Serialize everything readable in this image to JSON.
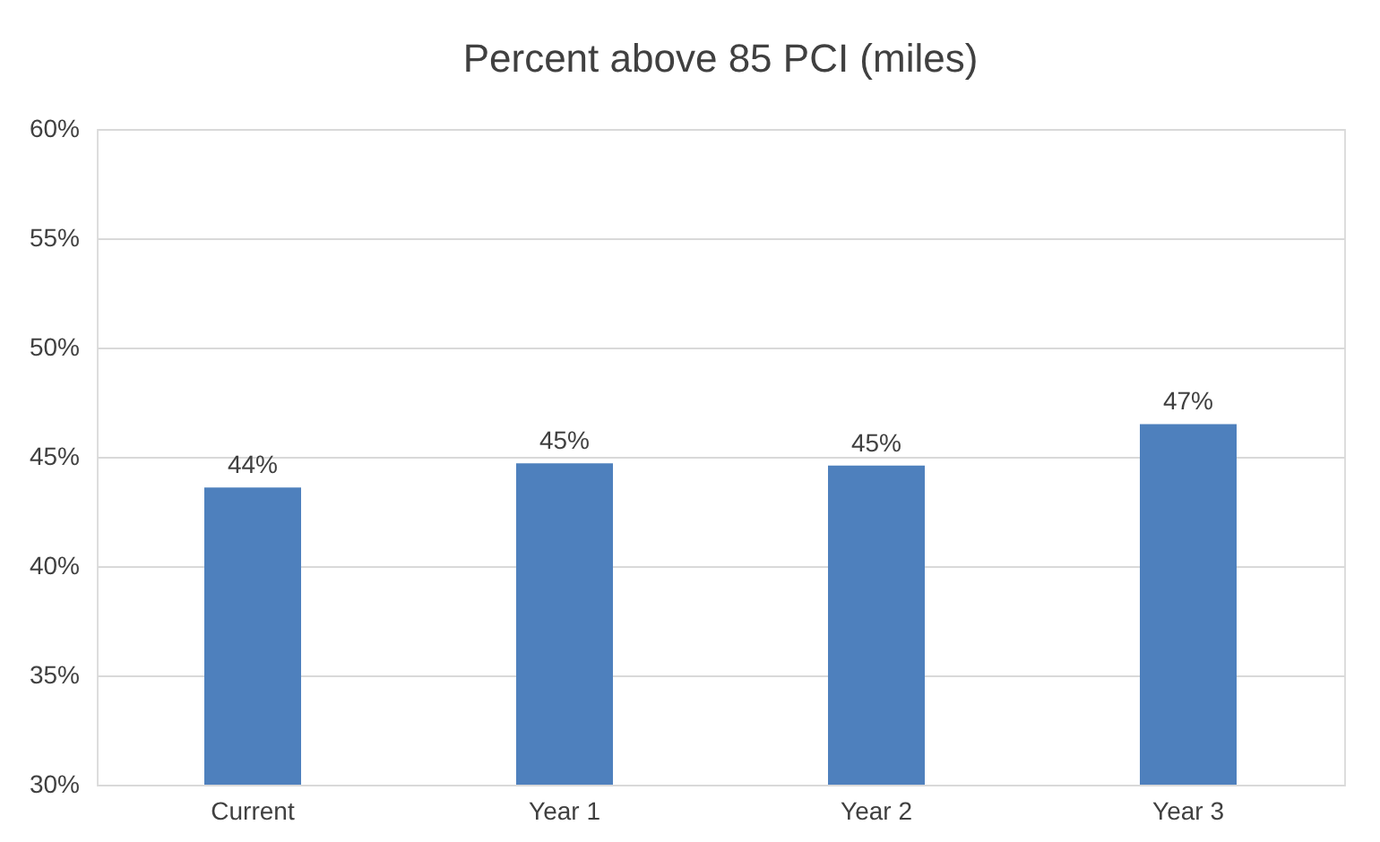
{
  "chart_data": {
    "type": "bar",
    "title": "Percent above 85 PCI (miles)",
    "categories": [
      "Current",
      "Year 1",
      "Year 2",
      "Year 3"
    ],
    "values": [
      43.6,
      44.7,
      44.6,
      46.5
    ],
    "value_labels": [
      "44%",
      "45%",
      "45%",
      "47%"
    ],
    "color": "#4e80bd",
    "ylim": [
      30,
      60
    ],
    "yticks": [
      {
        "value": 30,
        "label": "30%"
      },
      {
        "value": 35,
        "label": "35%"
      },
      {
        "value": 40,
        "label": "40%"
      },
      {
        "value": 45,
        "label": "45%"
      },
      {
        "value": 50,
        "label": "50%"
      },
      {
        "value": 55,
        "label": "55%"
      },
      {
        "value": 60,
        "label": "60%"
      }
    ],
    "grid": "y"
  }
}
